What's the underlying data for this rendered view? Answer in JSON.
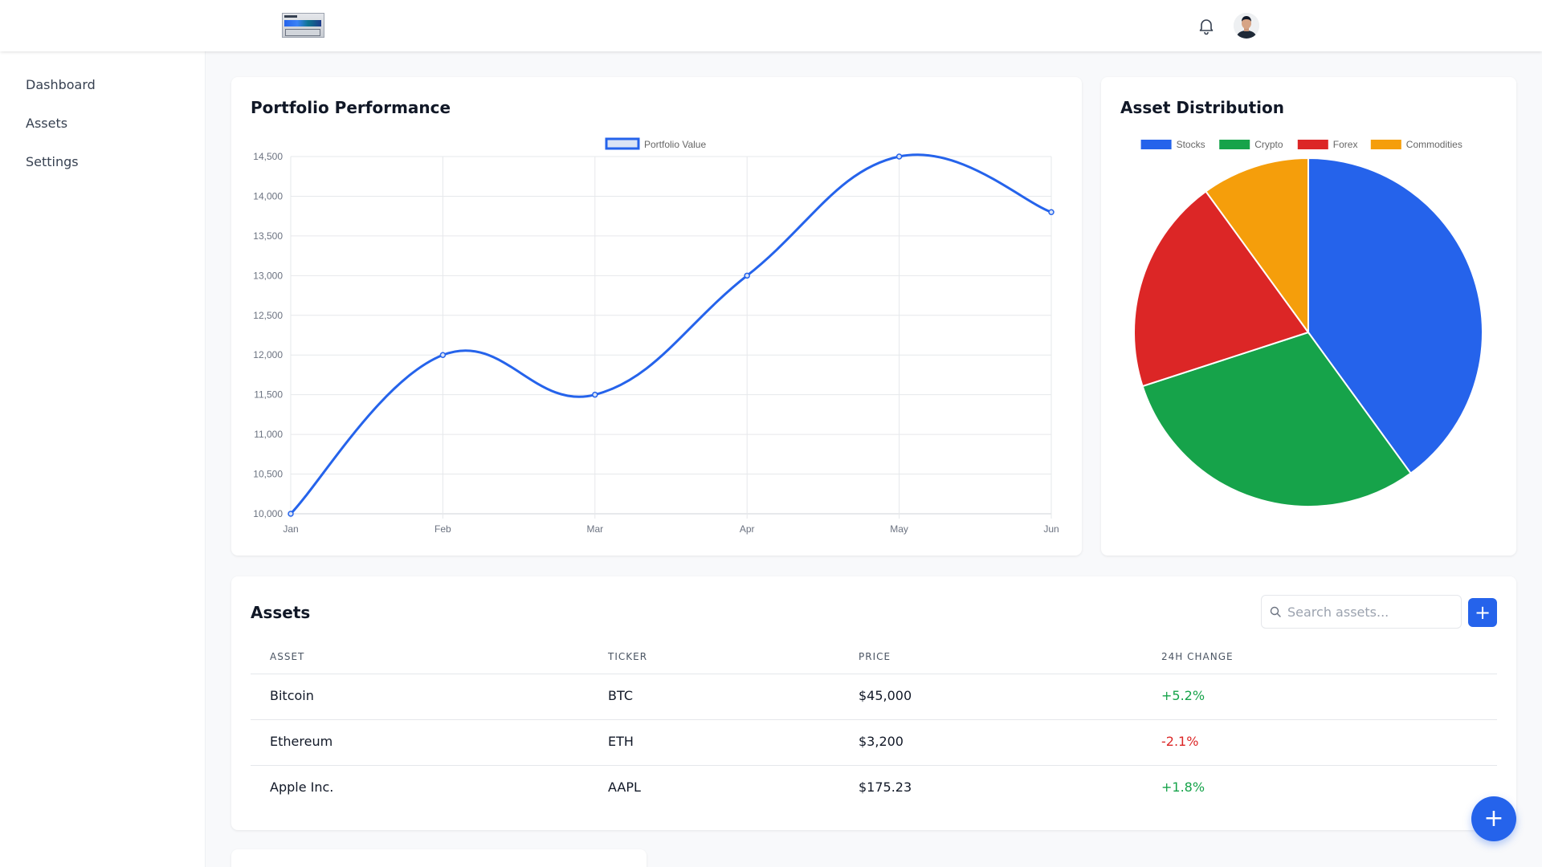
{
  "sidebar": {
    "items": [
      {
        "label": "Dashboard"
      },
      {
        "label": "Assets"
      },
      {
        "label": "Settings"
      }
    ]
  },
  "header": {
    "icons": [
      "bell-icon"
    ],
    "avatar": "user-avatar"
  },
  "performance_card": {
    "title": "Portfolio Performance"
  },
  "distribution_card": {
    "title": "Asset Distribution"
  },
  "assets_card": {
    "title": "Assets",
    "search_placeholder": "Search assets...",
    "add_label": "+",
    "columns": [
      "ASSET",
      "TICKER",
      "PRICE",
      "24H CHANGE"
    ],
    "rows": [
      {
        "asset": "Bitcoin",
        "ticker": "BTC",
        "price": "$45,000",
        "change": "+5.2%"
      },
      {
        "asset": "Ethereum",
        "ticker": "ETH",
        "price": "$3,200",
        "change": "-2.1%"
      },
      {
        "asset": "Apple Inc.",
        "ticker": "AAPL",
        "price": "$175.23",
        "change": "+1.8%"
      }
    ]
  },
  "fab_label": "+",
  "colors": {
    "accent": "#2563eb",
    "positive": "#16a34a",
    "negative": "#dc2626"
  },
  "chart_data": [
    {
      "type": "line",
      "title": "Portfolio Performance",
      "categories": [
        "Jan",
        "Feb",
        "Mar",
        "Apr",
        "May",
        "Jun"
      ],
      "series": [
        {
          "name": "Portfolio Value",
          "values": [
            10000,
            12000,
            11500,
            13000,
            14500,
            13800
          ],
          "color": "#2563eb"
        }
      ],
      "ylim": [
        10000,
        14500
      ],
      "yticks": [
        "14,500",
        "14,000",
        "13,500",
        "13,000",
        "12,500",
        "12,000",
        "11,500",
        "11,000",
        "10,500",
        "10,000"
      ],
      "grid": true,
      "legend": "top-center"
    },
    {
      "type": "pie",
      "title": "Asset Distribution",
      "categories": [
        "Stocks",
        "Crypto",
        "Forex",
        "Commodities"
      ],
      "values": [
        40,
        30,
        20,
        10
      ],
      "colors": [
        "#2563eb",
        "#16a34a",
        "#dc2626",
        "#f59e0b"
      ],
      "legend": "top-center"
    }
  ]
}
